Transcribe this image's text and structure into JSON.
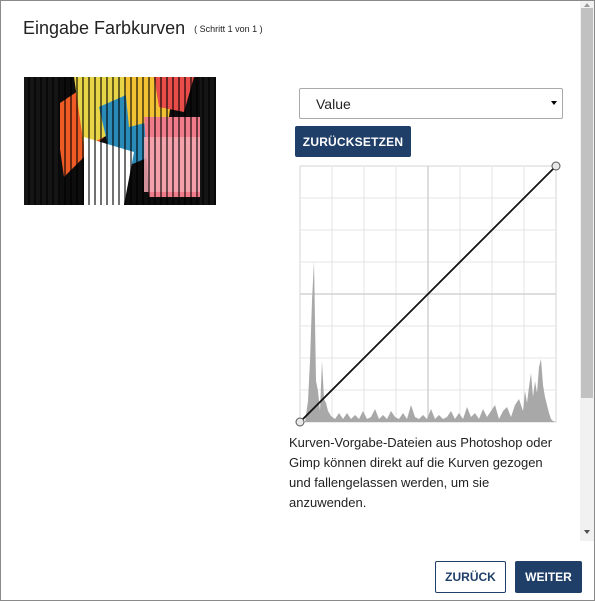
{
  "dialog": {
    "title": "Eingabe Farbkurven",
    "step": "( Schritt 1 von 1 )"
  },
  "channel_select": {
    "value": "Value",
    "icon": "chevron-down-icon"
  },
  "reset_label": "ZURÜCKSETZEN",
  "hint_text": "Kurven-Vorgabe-Dateien aus Photoshop oder Gimp können direkt auf die Kurven gezogen und fallengelassen werden, um sie anzuwenden.",
  "footer": {
    "back_label": "ZURÜCK",
    "next_label": "WEITER"
  },
  "colors": {
    "primary": "#1f3e68",
    "histogram": "#a0a0a0",
    "grid": "#d9d9d9"
  }
}
